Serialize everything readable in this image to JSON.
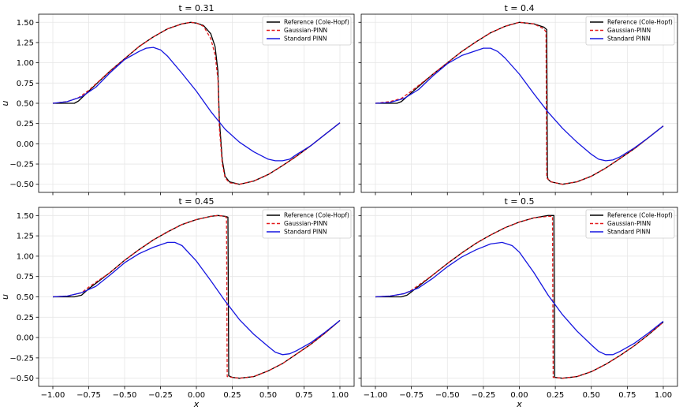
{
  "chart_data": [
    {
      "type": "line",
      "title": "t = 0.31",
      "xlabel": "",
      "ylabel": "u",
      "xlim": [
        -1.0,
        1.0
      ],
      "ylim": [
        -0.6,
        1.6
      ],
      "xticks": [],
      "yticks": [
        "1.50",
        "1.25",
        "1.00",
        "0.75",
        "0.50",
        "0.25",
        "0.00",
        "−0.25",
        "−0.50"
      ],
      "legend_position": "top-right",
      "grid": true,
      "series": [
        {
          "name": "Reference (Cole-Hopf)",
          "color": "#000000",
          "style": "solid",
          "x": [
            -1.0,
            -0.9,
            -0.85,
            -0.82,
            -0.75,
            -0.6,
            -0.5,
            -0.4,
            -0.3,
            -0.2,
            -0.1,
            -0.04,
            0.0,
            0.05,
            0.1,
            0.13,
            0.15,
            0.16,
            0.18,
            0.2,
            0.23,
            0.3,
            0.4,
            0.5,
            0.6,
            0.7,
            0.8,
            0.9,
            1.0
          ],
          "y": [
            0.5,
            0.5,
            0.5,
            0.53,
            0.65,
            0.9,
            1.05,
            1.2,
            1.32,
            1.42,
            1.48,
            1.5,
            1.49,
            1.46,
            1.36,
            1.2,
            0.9,
            0.3,
            -0.2,
            -0.4,
            -0.47,
            -0.5,
            -0.46,
            -0.38,
            -0.27,
            -0.15,
            -0.02,
            0.12,
            0.26
          ]
        },
        {
          "name": "Gaussian-PINN",
          "color": "#e31a1c",
          "style": "dashed",
          "x": [
            -1.0,
            -0.9,
            -0.82,
            -0.75,
            -0.6,
            -0.5,
            -0.4,
            -0.3,
            -0.2,
            -0.1,
            -0.04,
            0.0,
            0.05,
            0.1,
            0.13,
            0.15,
            0.16,
            0.18,
            0.2,
            0.23,
            0.3,
            0.4,
            0.5,
            0.6,
            0.7,
            0.8,
            0.9,
            1.0
          ],
          "y": [
            0.5,
            0.52,
            0.57,
            0.66,
            0.9,
            1.05,
            1.2,
            1.32,
            1.42,
            1.48,
            1.5,
            1.49,
            1.45,
            1.3,
            1.1,
            0.8,
            0.2,
            -0.25,
            -0.42,
            -0.48,
            -0.5,
            -0.46,
            -0.38,
            -0.27,
            -0.15,
            -0.02,
            0.12,
            0.26
          ]
        },
        {
          "name": "Standard PINN",
          "color": "#1515e0",
          "style": "solid",
          "x": [
            -1.0,
            -0.9,
            -0.8,
            -0.7,
            -0.6,
            -0.5,
            -0.4,
            -0.35,
            -0.3,
            -0.25,
            -0.2,
            -0.1,
            0.0,
            0.1,
            0.2,
            0.3,
            0.4,
            0.5,
            0.55,
            0.6,
            0.65,
            0.7,
            0.8,
            0.9,
            1.0
          ],
          "y": [
            0.5,
            0.52,
            0.58,
            0.7,
            0.88,
            1.04,
            1.14,
            1.18,
            1.19,
            1.16,
            1.08,
            0.87,
            0.65,
            0.4,
            0.18,
            0.02,
            -0.1,
            -0.19,
            -0.21,
            -0.21,
            -0.19,
            -0.13,
            -0.02,
            0.12,
            0.26
          ]
        }
      ]
    },
    {
      "type": "line",
      "title": "t = 0.4",
      "xlabel": "",
      "ylabel": "",
      "xlim": [
        -1.0,
        1.0
      ],
      "ylim": [
        -0.6,
        1.6
      ],
      "xticks": [],
      "yticks": [],
      "legend_position": "top-right",
      "grid": true,
      "series": [
        {
          "name": "Reference (Cole-Hopf)",
          "color": "#000000",
          "style": "solid",
          "x": [
            -1.0,
            -0.9,
            -0.85,
            -0.82,
            -0.75,
            -0.6,
            -0.5,
            -0.4,
            -0.3,
            -0.2,
            -0.1,
            0.0,
            0.1,
            0.17,
            0.19,
            0.195,
            0.2,
            0.22,
            0.3,
            0.4,
            0.5,
            0.6,
            0.7,
            0.8,
            0.9,
            1.0
          ],
          "y": [
            0.5,
            0.5,
            0.5,
            0.52,
            0.63,
            0.86,
            1.0,
            1.14,
            1.26,
            1.37,
            1.45,
            1.5,
            1.48,
            1.44,
            1.41,
            -0.4,
            -0.44,
            -0.47,
            -0.5,
            -0.47,
            -0.4,
            -0.3,
            -0.18,
            -0.06,
            0.08,
            0.22
          ]
        },
        {
          "name": "Gaussian-PINN",
          "color": "#e31a1c",
          "style": "dashed",
          "x": [
            -1.0,
            -0.9,
            -0.82,
            -0.75,
            -0.6,
            -0.5,
            -0.4,
            -0.3,
            -0.2,
            -0.1,
            0.0,
            0.1,
            0.17,
            0.185,
            0.19,
            0.22,
            0.3,
            0.4,
            0.5,
            0.6,
            0.7,
            0.8,
            0.9,
            1.0
          ],
          "y": [
            0.5,
            0.52,
            0.56,
            0.65,
            0.86,
            1.0,
            1.14,
            1.26,
            1.37,
            1.45,
            1.5,
            1.48,
            1.42,
            1.38,
            -0.42,
            -0.47,
            -0.5,
            -0.47,
            -0.4,
            -0.3,
            -0.18,
            -0.06,
            0.08,
            0.22
          ]
        },
        {
          "name": "Standard PINN",
          "color": "#1515e0",
          "style": "solid",
          "x": [
            -1.0,
            -0.9,
            -0.8,
            -0.7,
            -0.6,
            -0.5,
            -0.4,
            -0.3,
            -0.25,
            -0.2,
            -0.15,
            -0.1,
            0.0,
            0.1,
            0.2,
            0.3,
            0.4,
            0.5,
            0.55,
            0.6,
            0.65,
            0.7,
            0.8,
            0.9,
            1.0
          ],
          "y": [
            0.5,
            0.51,
            0.56,
            0.67,
            0.84,
            0.99,
            1.09,
            1.15,
            1.18,
            1.18,
            1.14,
            1.06,
            0.86,
            0.62,
            0.39,
            0.19,
            0.02,
            -0.13,
            -0.19,
            -0.21,
            -0.2,
            -0.16,
            -0.05,
            0.08,
            0.22
          ]
        }
      ]
    },
    {
      "type": "line",
      "title": "t = 0.45",
      "xlabel": "x",
      "ylabel": "u",
      "xlim": [
        -1.0,
        1.0
      ],
      "ylim": [
        -0.6,
        1.6
      ],
      "xticks": [
        "−1.00",
        "−0.75",
        "−0.50",
        "−0.25",
        "0.00",
        "0.25",
        "0.50",
        "0.75",
        "1.00"
      ],
      "yticks": [
        "1.50",
        "1.25",
        "1.00",
        "0.75",
        "0.50",
        "0.25",
        "0.00",
        "−0.25",
        "−0.50"
      ],
      "legend_position": "top-right",
      "grid": true,
      "series": [
        {
          "name": "Reference (Cole-Hopf)",
          "color": "#000000",
          "style": "solid",
          "x": [
            -1.0,
            -0.9,
            -0.85,
            -0.8,
            -0.75,
            -0.6,
            -0.5,
            -0.4,
            -0.3,
            -0.2,
            -0.1,
            0.0,
            0.1,
            0.15,
            0.2,
            0.22,
            0.225,
            0.25,
            0.3,
            0.4,
            0.5,
            0.6,
            0.7,
            0.8,
            0.9,
            1.0
          ],
          "y": [
            0.5,
            0.5,
            0.5,
            0.52,
            0.6,
            0.8,
            0.95,
            1.08,
            1.2,
            1.3,
            1.39,
            1.45,
            1.49,
            1.5,
            1.49,
            1.48,
            -0.47,
            -0.49,
            -0.5,
            -0.48,
            -0.41,
            -0.32,
            -0.2,
            -0.08,
            0.06,
            0.21
          ]
        },
        {
          "name": "Gaussian-PINN",
          "color": "#e31a1c",
          "style": "dashed",
          "x": [
            -1.0,
            -0.9,
            -0.8,
            -0.75,
            -0.6,
            -0.5,
            -0.4,
            -0.3,
            -0.2,
            -0.1,
            0.0,
            0.1,
            0.15,
            0.2,
            0.21,
            0.215,
            0.25,
            0.3,
            0.4,
            0.5,
            0.6,
            0.7,
            0.8,
            0.9,
            1.0
          ],
          "y": [
            0.5,
            0.51,
            0.55,
            0.62,
            0.8,
            0.95,
            1.08,
            1.2,
            1.3,
            1.39,
            1.45,
            1.49,
            1.5,
            1.49,
            1.47,
            -0.48,
            -0.49,
            -0.5,
            -0.48,
            -0.41,
            -0.32,
            -0.2,
            -0.08,
            0.06,
            0.21
          ]
        },
        {
          "name": "Standard PINN",
          "color": "#1515e0",
          "style": "solid",
          "x": [
            -1.0,
            -0.9,
            -0.8,
            -0.7,
            -0.6,
            -0.5,
            -0.4,
            -0.3,
            -0.2,
            -0.15,
            -0.1,
            0.0,
            0.1,
            0.2,
            0.3,
            0.4,
            0.5,
            0.55,
            0.6,
            0.65,
            0.7,
            0.8,
            0.9,
            1.0
          ],
          "y": [
            0.5,
            0.51,
            0.55,
            0.63,
            0.77,
            0.92,
            1.03,
            1.11,
            1.17,
            1.17,
            1.13,
            0.94,
            0.7,
            0.45,
            0.22,
            0.04,
            -0.11,
            -0.18,
            -0.21,
            -0.2,
            -0.16,
            -0.06,
            0.07,
            0.21
          ]
        }
      ]
    },
    {
      "type": "line",
      "title": "t = 0.5",
      "xlabel": "x",
      "ylabel": "",
      "xlim": [
        -1.0,
        1.0
      ],
      "ylim": [
        -0.6,
        1.6
      ],
      "xticks": [
        "−1.00",
        "−0.75",
        "−0.50",
        "−0.25",
        "0.00",
        "0.25",
        "0.50",
        "0.75",
        "1.00"
      ],
      "yticks": [],
      "legend_position": "top-right",
      "grid": true,
      "series": [
        {
          "name": "Reference (Cole-Hopf)",
          "color": "#000000",
          "style": "solid",
          "x": [
            -1.0,
            -0.9,
            -0.82,
            -0.78,
            -0.75,
            -0.6,
            -0.5,
            -0.4,
            -0.3,
            -0.2,
            -0.1,
            0.0,
            0.1,
            0.2,
            0.24,
            0.245,
            0.3,
            0.4,
            0.5,
            0.6,
            0.7,
            0.8,
            0.9,
            1.0
          ],
          "y": [
            0.5,
            0.5,
            0.5,
            0.52,
            0.56,
            0.77,
            0.91,
            1.04,
            1.16,
            1.26,
            1.35,
            1.42,
            1.47,
            1.5,
            1.5,
            -0.49,
            -0.5,
            -0.48,
            -0.42,
            -0.33,
            -0.22,
            -0.1,
            0.04,
            0.19
          ]
        },
        {
          "name": "Gaussian-PINN",
          "color": "#e31a1c",
          "style": "dashed",
          "x": [
            -1.0,
            -0.9,
            -0.8,
            -0.75,
            -0.6,
            -0.5,
            -0.4,
            -0.3,
            -0.2,
            -0.1,
            0.0,
            0.1,
            0.2,
            0.23,
            0.235,
            0.3,
            0.4,
            0.5,
            0.6,
            0.7,
            0.8,
            0.9,
            1.0
          ],
          "y": [
            0.5,
            0.51,
            0.54,
            0.58,
            0.77,
            0.91,
            1.04,
            1.16,
            1.26,
            1.35,
            1.42,
            1.47,
            1.49,
            1.49,
            -0.49,
            -0.5,
            -0.48,
            -0.42,
            -0.33,
            -0.22,
            -0.1,
            0.04,
            0.19
          ]
        },
        {
          "name": "Standard PINN",
          "color": "#1515e0",
          "style": "solid",
          "x": [
            -1.0,
            -0.9,
            -0.8,
            -0.7,
            -0.6,
            -0.5,
            -0.4,
            -0.3,
            -0.2,
            -0.12,
            -0.05,
            0.0,
            0.1,
            0.2,
            0.3,
            0.4,
            0.5,
            0.55,
            0.6,
            0.65,
            0.7,
            0.8,
            0.9,
            1.0
          ],
          "y": [
            0.5,
            0.51,
            0.54,
            0.61,
            0.73,
            0.87,
            0.99,
            1.08,
            1.15,
            1.17,
            1.13,
            1.05,
            0.8,
            0.52,
            0.28,
            0.08,
            -0.09,
            -0.17,
            -0.21,
            -0.21,
            -0.17,
            -0.07,
            0.06,
            0.2
          ]
        }
      ]
    }
  ]
}
